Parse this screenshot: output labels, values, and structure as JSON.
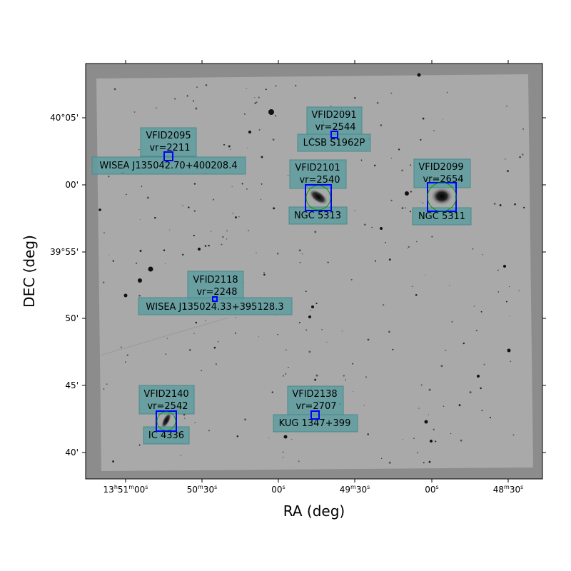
{
  "axes": {
    "xlabel": "RA (deg)",
    "ylabel": "DEC (deg)",
    "x_ticks": [
      {
        "main": "13",
        "sup1": "h",
        "mid": "51",
        "sup2": "m",
        "tail": "00",
        "sup3": "s"
      },
      {
        "main": "50",
        "sup1": "m",
        "mid": "30",
        "sup2": "s"
      },
      {
        "main": "00",
        "sup1": "s"
      },
      {
        "main": "49",
        "sup1": "m",
        "mid": "30",
        "sup2": "s"
      },
      {
        "main": "00",
        "sup1": "s"
      },
      {
        "main": "48",
        "sup1": "m",
        "mid": "30",
        "sup2": "s"
      }
    ],
    "y_ticks": [
      "40°05'",
      "00'",
      "39°55'",
      "50'",
      "45'",
      "40'"
    ]
  },
  "colors": {
    "frame_bg": "#8c8c8c",
    "image_bg": "#a9a9a9",
    "box_fill": "#5f9ea0",
    "box_stroke": "#0000ff",
    "circle_stroke": "#00a000",
    "star": "#111111"
  },
  "galaxies": [
    {
      "id": "VFID2091",
      "vr": "vr=2544",
      "name": "LCSB S1962P"
    },
    {
      "id": "VFID2095",
      "vr": "vr=2211",
      "name": "WISEA J135042.70+400208.4"
    },
    {
      "id": "VFID2101",
      "vr": "vr=2540",
      "name": "NGC 5313"
    },
    {
      "id": "VFID2099",
      "vr": "vr=2654",
      "name": "NGC 5311"
    },
    {
      "id": "VFID2118",
      "vr": "vr=2248",
      "name": "WISEA J135024.33+395128.3"
    },
    {
      "id": "VFID2140",
      "vr": "vr=2542",
      "name": "IC 4336"
    },
    {
      "id": "VFID2138",
      "vr": "vr=2707",
      "name": "KUG 1347+399"
    }
  ]
}
